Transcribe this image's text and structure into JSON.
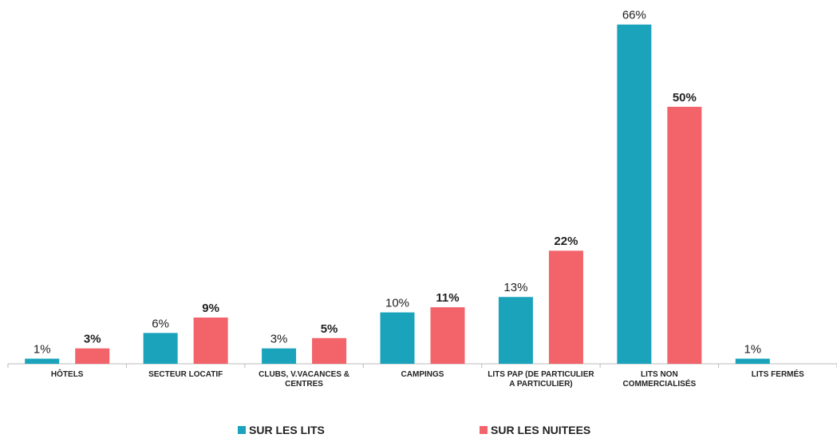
{
  "chart_data": {
    "type": "bar",
    "categories": [
      "HÔTELS",
      "SECTEUR LOCATIF",
      "CLUBS, V.VACANCES & CENTRES",
      "CAMPINGS",
      "LITS PAP (DE PARTICULIER A PARTICULIER)",
      "LITS NON COMMERCIALISÉS",
      "LITS FERMÉS"
    ],
    "series": [
      {
        "name": "SUR LES LITS",
        "color": "#1ba3bb",
        "values": [
          1,
          6,
          3,
          10,
          13,
          66,
          1
        ],
        "value_labels": [
          "1%",
          "6%",
          "3%",
          "10%",
          "13%",
          "66%",
          "1%"
        ]
      },
      {
        "name": "SUR LES NUITEES",
        "color": "#f2636a",
        "values": [
          3,
          9,
          5,
          11,
          22,
          50,
          null
        ],
        "value_labels": [
          "3%",
          "9%",
          "5%",
          "11%",
          "22%",
          "50%",
          null
        ]
      }
    ],
    "ylim": [
      0,
      70
    ],
    "legend": "bottom",
    "grid": false
  }
}
